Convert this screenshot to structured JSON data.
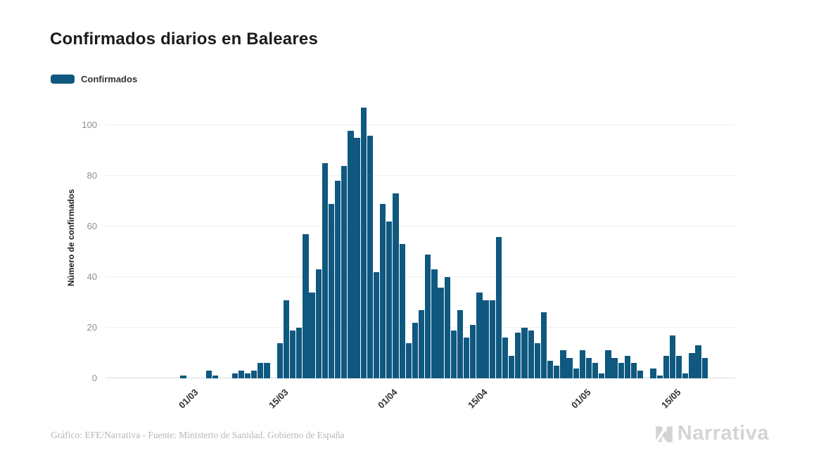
{
  "header": {
    "title": "Confirmados diarios en Baleares"
  },
  "legend": {
    "label": "Confirmados",
    "swatch_color": "#0f587f"
  },
  "footer": {
    "credit": "Gráfico: EFE/Narrativa - Fuente: Ministerio de Sanidad. Gobierno de España",
    "logo_text": "Narrativa"
  },
  "chart_data": {
    "type": "bar",
    "title": "Confirmados diarios en Baleares",
    "xlabel": "",
    "ylabel": "Número de confirmados",
    "ylim": [
      0,
      112
    ],
    "yticks": [
      0,
      20,
      40,
      60,
      80,
      100
    ],
    "grid": true,
    "legend_position": "top-left",
    "bar_color": "#0f587f",
    "zero_bar_color": "#ccdde9",
    "grid_color": "#efefef",
    "xticks": [
      {
        "index": 9,
        "label": "01/03"
      },
      {
        "index": 23,
        "label": "15/03"
      },
      {
        "index": 40,
        "label": "01/04"
      },
      {
        "index": 54,
        "label": "15/04"
      },
      {
        "index": 70,
        "label": "01/05"
      },
      {
        "index": 84,
        "label": "15/05"
      }
    ],
    "x": [
      "21/02",
      "22/02",
      "23/02",
      "24/02",
      "25/02",
      "26/02",
      "27/02",
      "28/02",
      "29/02",
      "01/03",
      "02/03",
      "03/03",
      "04/03",
      "05/03",
      "06/03",
      "07/03",
      "08/03",
      "09/03",
      "10/03",
      "11/03",
      "12/03",
      "13/03",
      "14/03",
      "15/03",
      "16/03",
      "17/03",
      "18/03",
      "19/03",
      "20/03",
      "21/03",
      "22/03",
      "23/03",
      "24/03",
      "25/03",
      "26/03",
      "27/03",
      "28/03",
      "29/03",
      "30/03",
      "31/03",
      "01/04",
      "02/04",
      "03/04",
      "04/04",
      "05/04",
      "06/04",
      "07/04",
      "08/04",
      "09/04",
      "10/04",
      "11/04",
      "12/04",
      "13/04",
      "14/04",
      "15/04",
      "16/04",
      "17/04",
      "18/04",
      "19/04",
      "20/04",
      "21/04",
      "22/04",
      "23/04",
      "24/04",
      "25/04",
      "26/04",
      "27/04",
      "28/04",
      "29/04",
      "30/04",
      "01/05",
      "02/05",
      "03/05",
      "04/05",
      "05/05",
      "06/05",
      "07/05",
      "08/05",
      "09/05",
      "10/05",
      "11/05",
      "12/05",
      "13/05",
      "14/05",
      "15/05",
      "16/05",
      "17/05",
      "18/05",
      "19/05",
      "20/05"
    ],
    "series": [
      {
        "name": "Confirmados",
        "color": "#0f587f",
        "values": [
          0,
          0,
          0,
          0,
          0,
          0,
          0,
          0,
          1,
          0,
          0,
          0,
          3,
          1,
          0,
          0,
          2,
          3,
          2,
          3,
          6,
          6,
          0,
          14,
          31,
          19,
          20,
          57,
          34,
          43,
          85,
          69,
          78,
          84,
          98,
          95,
          107,
          96,
          42,
          69,
          62,
          73,
          53,
          14,
          22,
          27,
          49,
          43,
          36,
          40,
          19,
          27,
          16,
          21,
          34,
          31,
          31,
          56,
          16,
          9,
          18,
          20,
          19,
          14,
          26,
          7,
          5,
          11,
          8,
          4,
          11,
          8,
          6,
          2,
          11,
          8,
          6,
          9,
          6,
          3,
          0,
          4,
          1,
          9,
          17,
          9,
          2,
          10,
          13,
          8
        ]
      }
    ]
  }
}
